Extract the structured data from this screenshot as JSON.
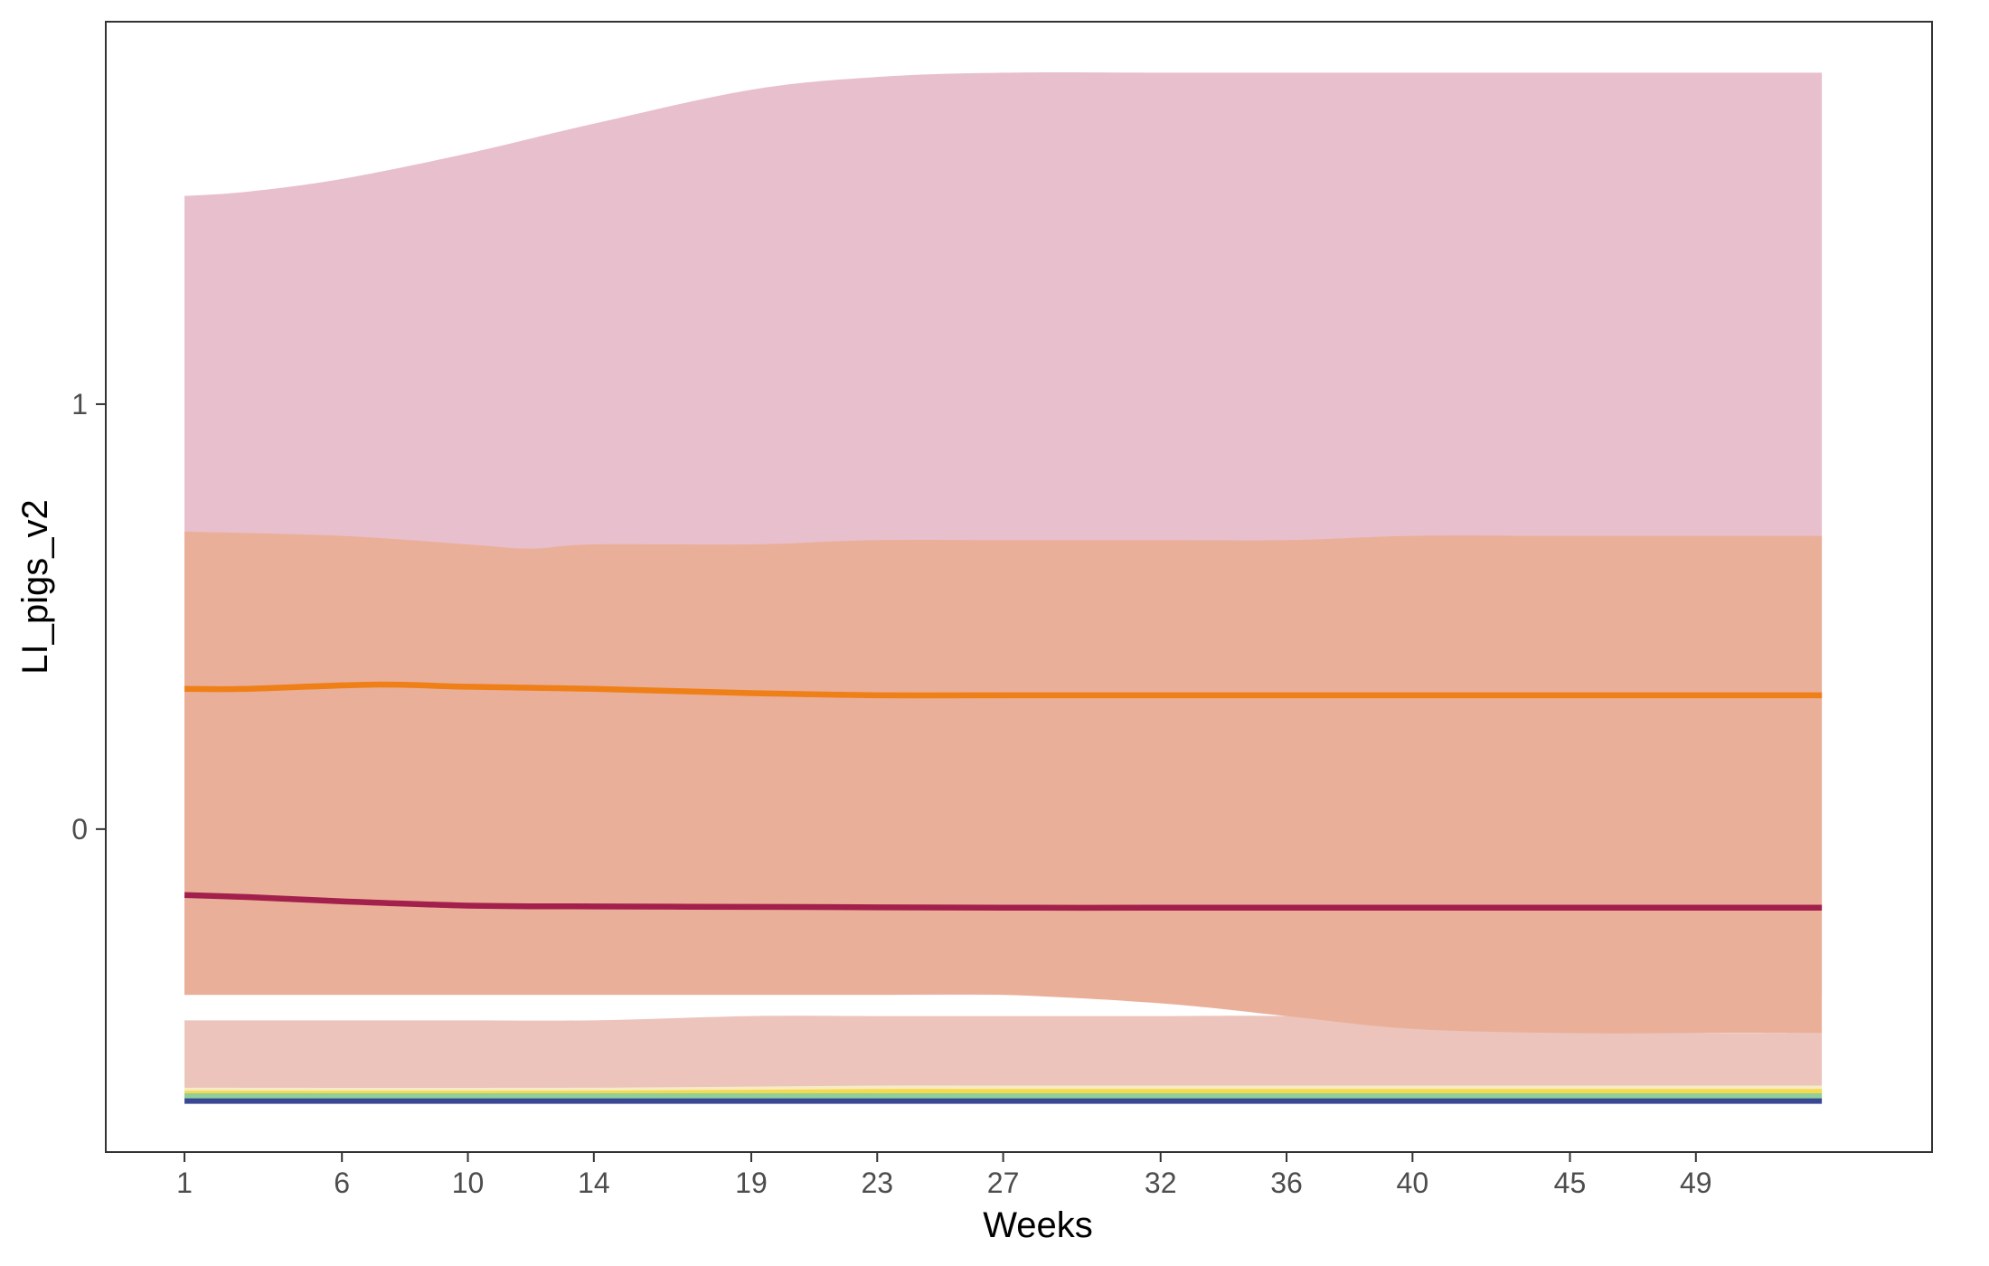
{
  "chart_data": {
    "type": "area",
    "xlabel": "Weeks",
    "ylabel": "LI_pigs_v2",
    "x_ticks": [
      1,
      6,
      10,
      14,
      19,
      23,
      27,
      32,
      36,
      40,
      45,
      49
    ],
    "y_ticks": [
      0,
      1
    ],
    "xlim": [
      -1.5,
      56.5
    ],
    "ylim": [
      -0.76,
      1.9
    ],
    "grid": false,
    "legend": "none",
    "bands": [
      {
        "color": "#e8bfcc",
        "x": [
          1,
          3,
          6,
          10,
          14,
          19,
          23,
          27,
          32,
          36,
          40,
          45,
          49,
          53
        ],
        "lower": [
          -0.39,
          -0.39,
          -0.39,
          -0.39,
          -0.39,
          -0.39,
          -0.39,
          -0.39,
          -0.39,
          -0.39,
          -0.39,
          -0.39,
          -0.39,
          -0.39
        ],
        "upper": [
          1.49,
          1.5,
          1.53,
          1.59,
          1.66,
          1.74,
          1.77,
          1.78,
          1.78,
          1.78,
          1.78,
          1.78,
          1.78,
          1.78
        ]
      },
      {
        "color": "#ecc4bb",
        "x": [
          1,
          6,
          10,
          14,
          19,
          23,
          27,
          32,
          36,
          40,
          45,
          49,
          53
        ],
        "lower": [
          -0.64,
          -0.64,
          -0.64,
          -0.64,
          -0.64,
          -0.64,
          -0.64,
          -0.64,
          -0.64,
          -0.64,
          -0.64,
          -0.64,
          -0.64
        ],
        "upper": [
          -0.45,
          -0.45,
          -0.45,
          -0.45,
          -0.44,
          -0.44,
          -0.44,
          -0.44,
          -0.44,
          -0.45,
          -0.47,
          -0.48,
          -0.48
        ]
      },
      {
        "color": "#eaaf98",
        "x": [
          1,
          6,
          10,
          12,
          14,
          19,
          23,
          27,
          32,
          36,
          40,
          45,
          49,
          53
        ],
        "lower": [
          -0.39,
          -0.39,
          -0.39,
          -0.39,
          -0.39,
          -0.39,
          -0.39,
          -0.39,
          -0.41,
          -0.44,
          -0.47,
          -0.48,
          -0.48,
          -0.48
        ],
        "upper": [
          0.7,
          0.69,
          0.67,
          0.66,
          0.67,
          0.67,
          0.68,
          0.68,
          0.68,
          0.68,
          0.69,
          0.69,
          0.69,
          0.69
        ]
      }
    ],
    "series": [
      {
        "color": "#ef7f17",
        "x": [
          1,
          3,
          7,
          10,
          14,
          19,
          23,
          27,
          32,
          36,
          40,
          45,
          49,
          53
        ],
        "values": [
          0.33,
          0.33,
          0.34,
          0.335,
          0.33,
          0.32,
          0.315,
          0.315,
          0.315,
          0.315,
          0.315,
          0.315,
          0.315,
          0.315
        ]
      },
      {
        "color": "#a31f4c",
        "x": [
          1,
          3,
          6,
          10,
          14,
          19,
          23,
          27,
          32,
          36,
          40,
          45,
          49,
          53
        ],
        "values": [
          -0.155,
          -0.16,
          -0.17,
          -0.18,
          -0.182,
          -0.183,
          -0.184,
          -0.185,
          -0.185,
          -0.185,
          -0.185,
          -0.185,
          -0.185,
          -0.185
        ]
      },
      {
        "color": "#f5ecc5",
        "x": [
          1,
          14,
          23,
          27,
          53
        ],
        "values": [
          -0.615,
          -0.615,
          -0.61,
          -0.61,
          -0.61
        ]
      },
      {
        "color": "#f7d94d",
        "x": [
          1,
          14,
          23,
          27,
          53
        ],
        "values": [
          -0.622,
          -0.622,
          -0.618,
          -0.618,
          -0.618
        ]
      },
      {
        "color": "#8fcf9a",
        "x": [
          1,
          53
        ],
        "values": [
          -0.628,
          -0.628
        ]
      },
      {
        "color": "#3a4795",
        "x": [
          1,
          53
        ],
        "values": [
          -0.64,
          -0.64
        ]
      }
    ]
  }
}
